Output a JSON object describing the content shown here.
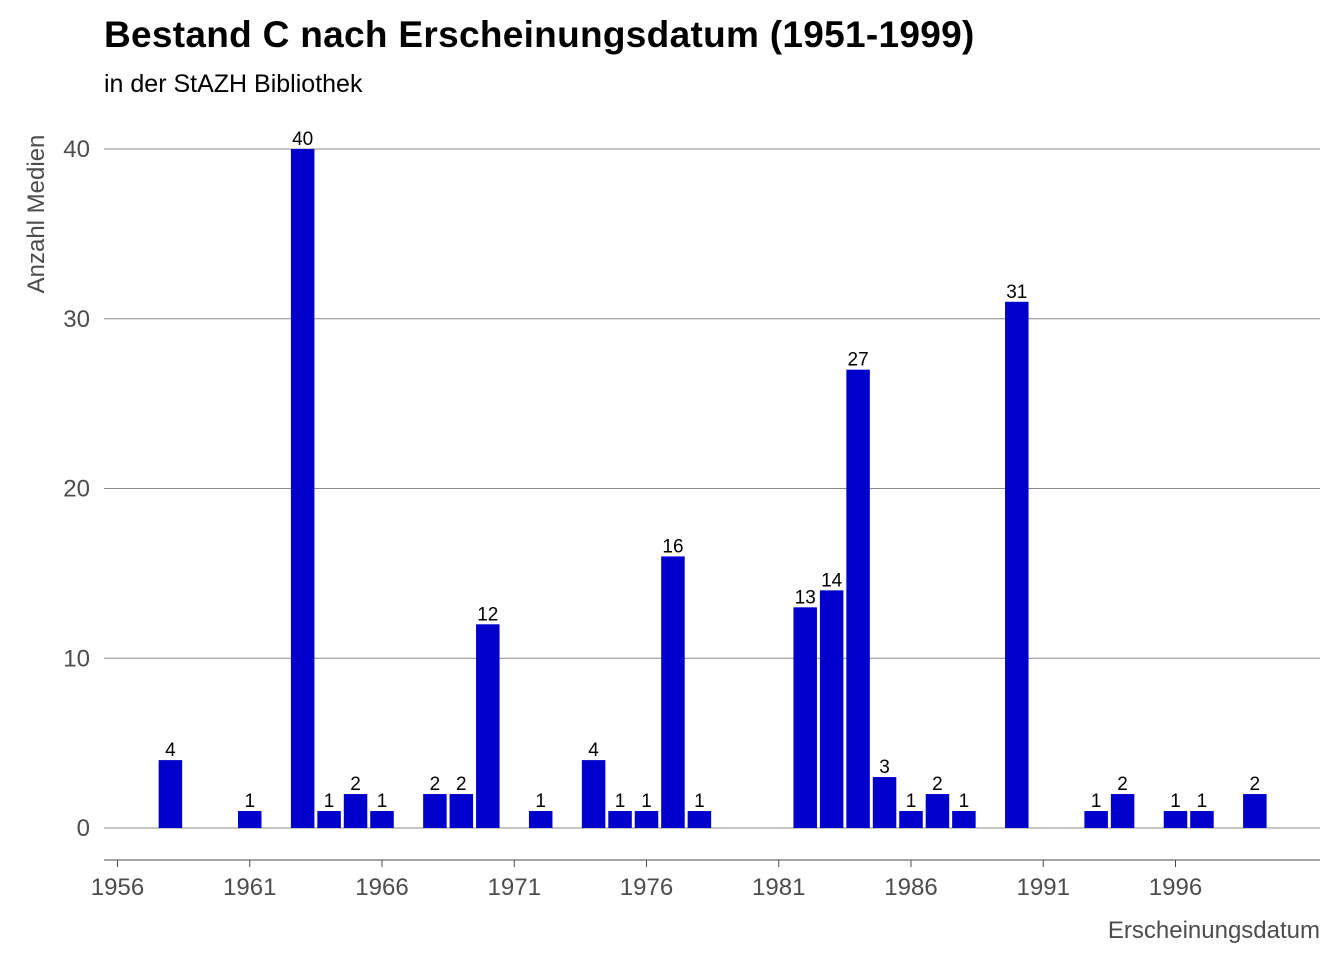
{
  "chart_data": {
    "type": "bar",
    "title": "Bestand C nach Erscheinungsdatum (1951-1999)",
    "subtitle": "in der StAZH Bibliothek",
    "xlabel": "Erscheinungsdatum",
    "ylabel": "Anzahl Medien",
    "x": [
      1958,
      1961,
      1963,
      1964,
      1965,
      1966,
      1968,
      1969,
      1970,
      1972,
      1974,
      1975,
      1976,
      1977,
      1978,
      1982,
      1983,
      1984,
      1985,
      1986,
      1987,
      1988,
      1990,
      1993,
      1994,
      1996,
      1997,
      1999
    ],
    "values": [
      4,
      1,
      40,
      1,
      2,
      1,
      2,
      2,
      12,
      1,
      4,
      1,
      1,
      16,
      1,
      13,
      14,
      27,
      3,
      1,
      2,
      1,
      31,
      1,
      2,
      1,
      1,
      2
    ],
    "xlim": [
      1956,
      2001
    ],
    "xticks": [
      "1956",
      "1961",
      "1966",
      "1971",
      "1976",
      "1981",
      "1986",
      "1991",
      "1996"
    ],
    "ylim": [
      0,
      42
    ],
    "yticks": [
      "0",
      "10",
      "20",
      "30",
      "40"
    ],
    "grid": "horizontal",
    "bar_color": "#0000cc"
  }
}
